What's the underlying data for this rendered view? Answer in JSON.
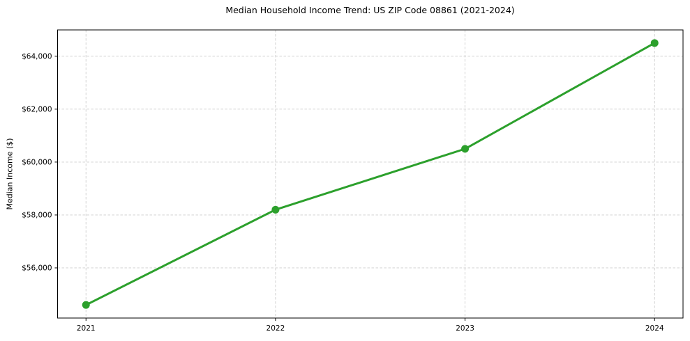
{
  "chart_data": {
    "type": "line",
    "title": "Median Household Income Trend: US ZIP Code 08861 (2021-2024)",
    "xlabel": "",
    "ylabel": "Median Income ($)",
    "x": [
      2021,
      2022,
      2023,
      2024
    ],
    "x_tick_labels": [
      "2021",
      "2022",
      "2023",
      "2024"
    ],
    "values": [
      54600,
      58200,
      60500,
      64500
    ],
    "yticks": [
      56000,
      58000,
      60000,
      62000,
      64000
    ],
    "y_tick_labels": [
      "$56,000",
      "$58,000",
      "$60,000",
      "$62,000",
      "$64,000"
    ],
    "xlim": [
      2020.85,
      2024.15
    ],
    "ylim": [
      54105,
      64995
    ],
    "grid": true,
    "grid_style": "dashed",
    "legend_position": "none",
    "line_color": "#2ca02c",
    "marker": "circle",
    "grid_color": "#cccccc",
    "axis_color": "#000000",
    "background_color": "#ffffff"
  }
}
